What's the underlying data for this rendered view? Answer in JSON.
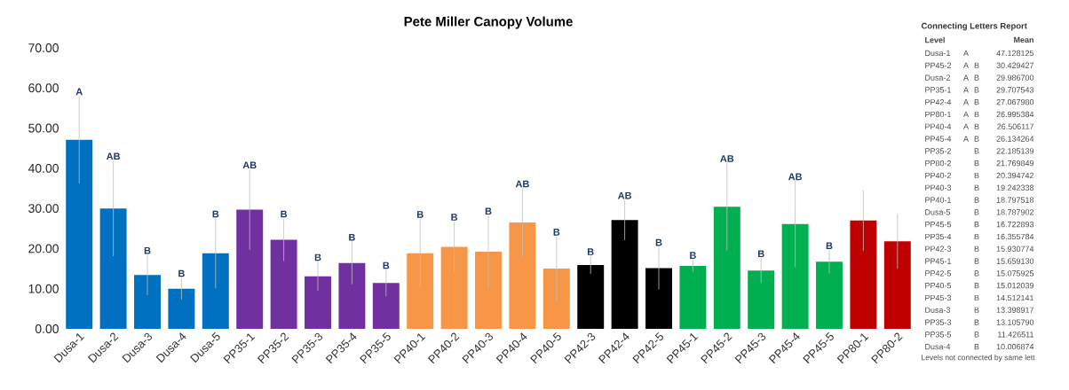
{
  "chart_data": [
    {
      "type": "bar",
      "title": "Pete Miller Canopy Volume",
      "categories": [
        "Dusa-1",
        "Dusa-2",
        "Dusa-3",
        "Dusa-4",
        "Dusa-5",
        "PP35-1",
        "PP35-2",
        "PP35-3",
        "PP35-4",
        "PP35-5",
        "PP40-1",
        "PP40-2",
        "PP40-3",
        "PP40-4",
        "PP40-5",
        "PP42-3",
        "PP42-4",
        "PP42-5",
        "PP45-1",
        "PP45-2",
        "PP45-3",
        "PP45-4",
        "PP45-5",
        "PP80-1",
        "PP80-2"
      ],
      "values": [
        47.1,
        30.0,
        13.4,
        10.0,
        18.8,
        29.7,
        22.2,
        13.1,
        16.4,
        11.4,
        18.8,
        20.4,
        19.2,
        26.5,
        15.0,
        15.9,
        27.1,
        15.1,
        15.7,
        30.4,
        14.5,
        26.1,
        16.7,
        27.0,
        21.8
      ],
      "errors": [
        10.9,
        11.9,
        5.0,
        2.7,
        8.7,
        10.0,
        5.3,
        3.6,
        5.3,
        3.3,
        8.6,
        6.3,
        9.0,
        8.5,
        8.0,
        2.2,
        5.0,
        5.3,
        1.5,
        10.9,
        3.1,
        10.7,
        2.9,
        7.6,
        6.8
      ],
      "colors": [
        "#0070c0",
        "#0070c0",
        "#0070c0",
        "#0070c0",
        "#0070c0",
        "#7030a0",
        "#7030a0",
        "#7030a0",
        "#7030a0",
        "#7030a0",
        "#f79646",
        "#f79646",
        "#f79646",
        "#f79646",
        "#f79646",
        "#000000",
        "#000000",
        "#000000",
        "#00b050",
        "#00b050",
        "#00b050",
        "#00b050",
        "#00b050",
        "#c00000",
        "#c00000"
      ],
      "ylim": [
        0,
        70
      ],
      "yticks": [
        {
          "value": 0,
          "label": "0.00"
        },
        {
          "value": 10,
          "label": "10.00"
        },
        {
          "value": 20,
          "label": "20.00"
        },
        {
          "value": 30,
          "label": "30.00"
        },
        {
          "value": 40,
          "label": "40.00"
        },
        {
          "value": 50,
          "label": "50.00"
        },
        {
          "value": 60,
          "label": "60.00"
        },
        {
          "value": 70,
          "label": "70.00"
        }
      ],
      "grid": false,
      "annotations": [
        {
          "text": "A",
          "x": "Dusa-1",
          "y": 58.0
        },
        {
          "text": "AB",
          "x": "Dusa-2",
          "y": 41.9
        },
        {
          "text": "B",
          "x": "Dusa-3",
          "y": 18.4
        },
        {
          "text": "B",
          "x": "Dusa-4",
          "y": 12.7
        },
        {
          "text": "B",
          "x": "Dusa-5",
          "y": 27.5
        },
        {
          "text": "AB",
          "x": "PP35-1",
          "y": 39.7
        },
        {
          "text": "B",
          "x": "PP35-2",
          "y": 27.5
        },
        {
          "text": "B",
          "x": "PP35-3",
          "y": 16.7
        },
        {
          "text": "B",
          "x": "PP35-4",
          "y": 21.7
        },
        {
          "text": "B",
          "x": "PP35-5",
          "y": 14.7
        },
        {
          "text": "B",
          "x": "PP40-1",
          "y": 27.4
        },
        {
          "text": "B",
          "x": "PP40-2",
          "y": 26.7
        },
        {
          "text": "B",
          "x": "PP40-3",
          "y": 28.2
        },
        {
          "text": "AB",
          "x": "PP40-4",
          "y": 35.0
        },
        {
          "text": "B",
          "x": "PP40-5",
          "y": 23.0
        },
        {
          "text": "B",
          "x": "PP42-3",
          "y": 18.1
        },
        {
          "text": "AB",
          "x": "PP42-4",
          "y": 32.1
        },
        {
          "text": "B",
          "x": "PP42-5",
          "y": 20.4
        },
        {
          "text": "B",
          "x": "PP45-1",
          "y": 17.2
        },
        {
          "text": "AB",
          "x": "PP45-2",
          "y": 41.3
        },
        {
          "text": "B",
          "x": "PP45-3",
          "y": 17.6
        },
        {
          "text": "AB",
          "x": "PP45-4",
          "y": 36.8
        },
        {
          "text": "B",
          "x": "PP45-5",
          "y": 19.6
        }
      ]
    },
    {
      "type": "other",
      "title": "Connecting Letters Report",
      "xlabel": "Level",
      "ylabel": "Mean",
      "categories": [
        "Dusa-1",
        "PP45-2",
        "Dusa-2",
        "PP35-1",
        "PP42-4",
        "PP80-1",
        "PP40-4",
        "PP45-4",
        "PP35-2",
        "PP80-2",
        "PP40-2",
        "PP40-3",
        "PP40-1",
        "Dusa-5",
        "PP45-5",
        "PP35-4",
        "PP42-3",
        "PP45-1",
        "PP42-5",
        "PP40-5",
        "PP45-3",
        "Dusa-3",
        "PP35-3",
        "PP35-5",
        "Dusa-4"
      ],
      "value_labels": [
        "47.128125",
        "30.429427",
        "29.986700",
        "29.707543",
        "27.067980",
        "26.995384",
        "26.506117",
        "26.134264",
        "22.185139",
        "21.769849",
        "20.394742",
        "19.242338",
        "18.797518",
        "18.787902",
        "16.722893",
        "16.355784",
        "15.930774",
        "15.659130",
        "15.075925",
        "15.012039",
        "14.512141",
        "13.398917",
        "13.105790",
        "11.426511",
        "10.006874"
      ],
      "cell_labels": [
        [
          "A",
          null
        ],
        [
          "A",
          "B"
        ],
        [
          "A",
          "B"
        ],
        [
          "A",
          "B"
        ],
        [
          "A",
          "B"
        ],
        [
          "A",
          "B"
        ],
        [
          "A",
          "B"
        ],
        [
          "A",
          "B"
        ],
        [
          null,
          "B"
        ],
        [
          null,
          "B"
        ],
        [
          null,
          "B"
        ],
        [
          null,
          "B"
        ],
        [
          null,
          "B"
        ],
        [
          null,
          "B"
        ],
        [
          null,
          "B"
        ],
        [
          null,
          "B"
        ],
        [
          null,
          "B"
        ],
        [
          null,
          "B"
        ],
        [
          null,
          "B"
        ],
        [
          null,
          "B"
        ],
        [
          null,
          "B"
        ],
        [
          null,
          "B"
        ],
        [
          null,
          "B"
        ],
        [
          null,
          "B"
        ],
        [
          null,
          "B"
        ]
      ],
      "annotations": [
        "Levels not connected by same lett"
      ]
    }
  ]
}
